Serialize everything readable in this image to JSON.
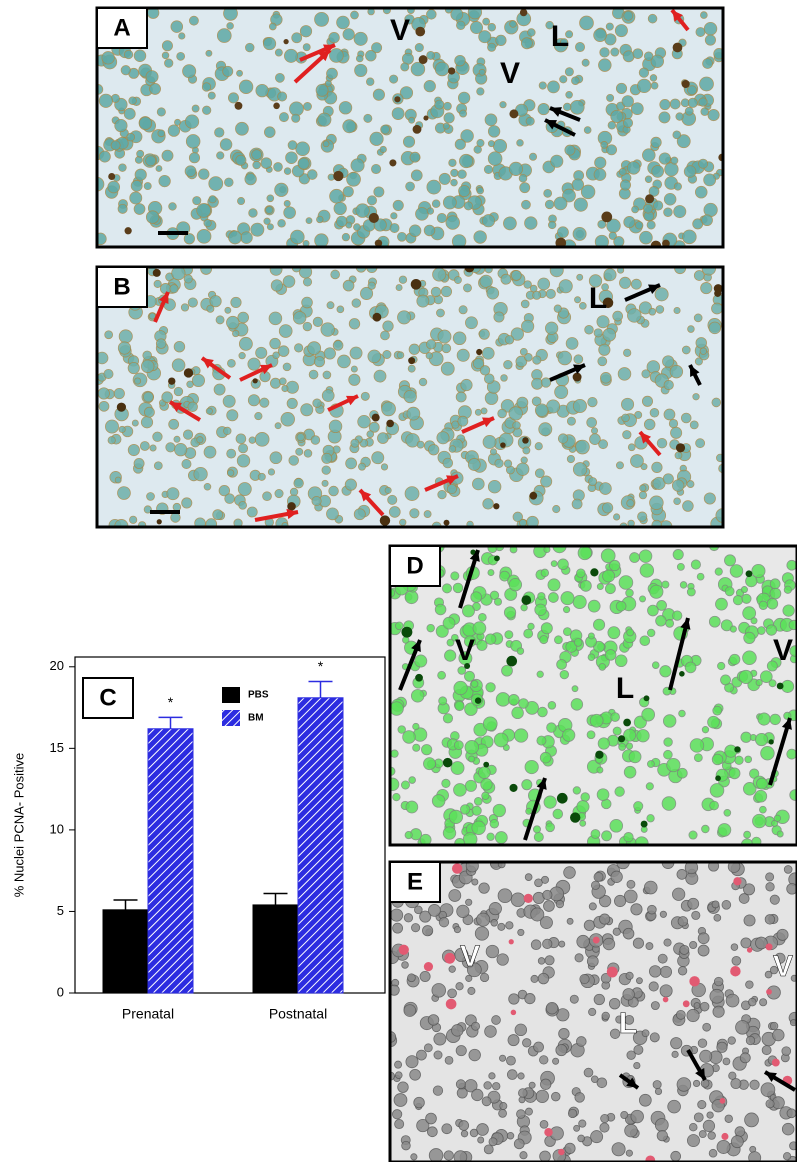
{
  "panels": [
    {
      "label": "A",
      "annotations": [
        "V",
        "V",
        "L"
      ]
    },
    {
      "label": "B",
      "annotations": [
        "L"
      ]
    },
    {
      "label": "D",
      "annotations": [
        "V",
        "L",
        "V"
      ]
    },
    {
      "label": "E",
      "annotations": [
        "V",
        "L",
        "V"
      ]
    }
  ],
  "chart_data": {
    "type": "bar",
    "panel_label": "C",
    "y_label": "% Nuclei PCNA- Positive",
    "categories": [
      "Prenatal",
      "Postnatal"
    ],
    "series": [
      {
        "name": "PBS",
        "color": "#000000",
        "values": [
          5.1,
          5.4
        ],
        "errors": [
          0.6,
          0.7
        ]
      },
      {
        "name": "BM",
        "color": "#2c2ce0",
        "values": [
          16.2,
          18.1
        ],
        "errors": [
          0.7,
          1.0
        ]
      }
    ],
    "significance": [
      "*",
      "*"
    ],
    "ylim": [
      0,
      20.6
    ],
    "yticks": [
      0,
      5,
      10,
      15,
      20
    ]
  }
}
